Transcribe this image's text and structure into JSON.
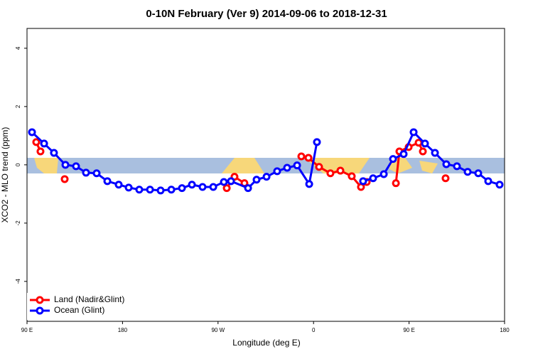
{
  "chart_data": {
    "type": "line",
    "title": "0-10N February (Ver 9)   2014-09-06 to 2018-12-31",
    "x_label": "Longitude (deg E)",
    "y_label": "XCO2 - MLO trend (ppm)",
    "xlim": [
      90,
      540
    ],
    "ylim": [
      -5.37,
      4.68
    ],
    "xticks": [
      {
        "value": 90,
        "label": "90 E"
      },
      {
        "value": 180,
        "label": "180"
      },
      {
        "value": 270,
        "label": "90 W"
      },
      {
        "value": 360,
        "label": "0"
      },
      {
        "value": 450,
        "label": "90 E"
      },
      {
        "value": 540,
        "label": "180"
      }
    ],
    "yticks": [
      4,
      2,
      0,
      -2,
      -4
    ],
    "legend": "bottom-left",
    "series": [
      {
        "name": "Land (Nadir&Glint)",
        "color": "#ff0000",
        "x": [
          98.7,
          102.7,
          null,
          125.5,
          null,
          278.2,
          285.5,
          294.9,
          null,
          348.5,
          355.2,
          365.2,
          375.9,
          385.3,
          396,
          404.7,
          410.1,
          null,
          437.6,
          440.9,
          449.6,
          459,
          463,
          null,
          484.4
        ],
        "values": [
          0.78,
          0.46,
          null,
          -0.49,
          null,
          -0.8,
          -0.41,
          -0.63,
          null,
          0.29,
          0.24,
          -0.07,
          -0.29,
          -0.2,
          -0.39,
          -0.76,
          -0.59,
          null,
          -0.63,
          0.46,
          0.61,
          0.76,
          0.46,
          null,
          -0.46
        ]
      },
      {
        "name": "Ocean (Glint)",
        "color": "#0000ff",
        "x": [
          94.7,
          106.1,
          115.4,
          126.2,
          136.2,
          145.6,
          155.6,
          165.7,
          176.4,
          185.8,
          195.8,
          205.9,
          215.9,
          226,
          236,
          245.4,
          255.4,
          265.5,
          275.5,
          282.2,
          298.3,
          306.3,
          315.7,
          325.7,
          335.1,
          344.5,
          355.9,
          363.2,
          null,
          406.7,
          416.1,
          426.2,
          434.9,
          444.9,
          454.3,
          465,
          474.4,
          485.1,
          495.1,
          505.2,
          515.2,
          524.6,
          535.3
        ],
        "values": [
          1.12,
          0.73,
          0.41,
          0,
          -0.05,
          -0.27,
          -0.29,
          -0.56,
          -0.68,
          -0.78,
          -0.85,
          -0.85,
          -0.88,
          -0.85,
          -0.8,
          -0.68,
          -0.76,
          -0.76,
          -0.59,
          -0.56,
          -0.8,
          -0.51,
          -0.41,
          -0.22,
          -0.1,
          -0.02,
          -0.66,
          0.78,
          null,
          -0.56,
          -0.46,
          -0.32,
          0.2,
          0.37,
          1.12,
          0.73,
          0.41,
          0.02,
          -0.05,
          -0.24,
          -0.29,
          -0.56,
          -0.68
        ]
      }
    ]
  }
}
